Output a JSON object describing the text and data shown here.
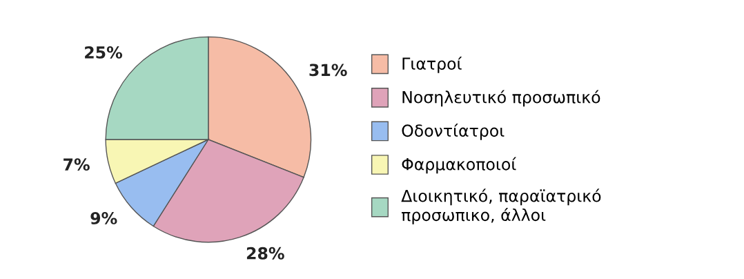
{
  "chart_data": {
    "type": "pie",
    "categories": [
      "Γιατροί",
      "Νοσηλευτικό προσωπικό",
      "Οδοντίατροι",
      "Φαρμακοποιοί",
      "Διοικητικό, παραϊατρικό προσωπικο, άλλοι"
    ],
    "values": [
      31,
      28,
      9,
      7,
      25
    ],
    "value_labels": [
      "31%",
      "28%",
      "9%",
      "7%",
      "25%"
    ],
    "colors": [
      "#f6bca6",
      "#dfa3b9",
      "#98bdf0",
      "#f8f6b4",
      "#a6d8c2"
    ],
    "legend": "right"
  }
}
